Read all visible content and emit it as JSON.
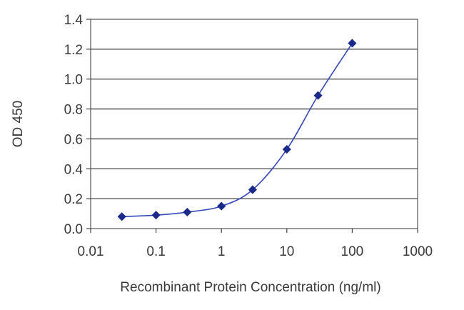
{
  "chart_data": {
    "type": "line",
    "title": "",
    "xlabel": "Recombinant Protein Concentration (ng/ml)",
    "ylabel": "OD 450",
    "x_scale": "log",
    "xlim": [
      0.01,
      1000
    ],
    "ylim": [
      0,
      1.4
    ],
    "x_ticks": [
      "0.01",
      "0.1",
      "1",
      "10",
      "100",
      "1000"
    ],
    "y_ticks": [
      "0.0",
      "0.2",
      "0.4",
      "0.6",
      "0.8",
      "1.0",
      "1.2",
      "1.4"
    ],
    "grid": "horizontal",
    "legend": "none",
    "series": [
      {
        "x": [
          0.03,
          0.1,
          0.3,
          1,
          3,
          10,
          30,
          100
        ],
        "y": [
          0.08,
          0.09,
          0.11,
          0.15,
          0.26,
          0.53,
          0.89,
          1.24
        ],
        "color": "#1a2a8a",
        "marker": "diamond"
      }
    ]
  }
}
